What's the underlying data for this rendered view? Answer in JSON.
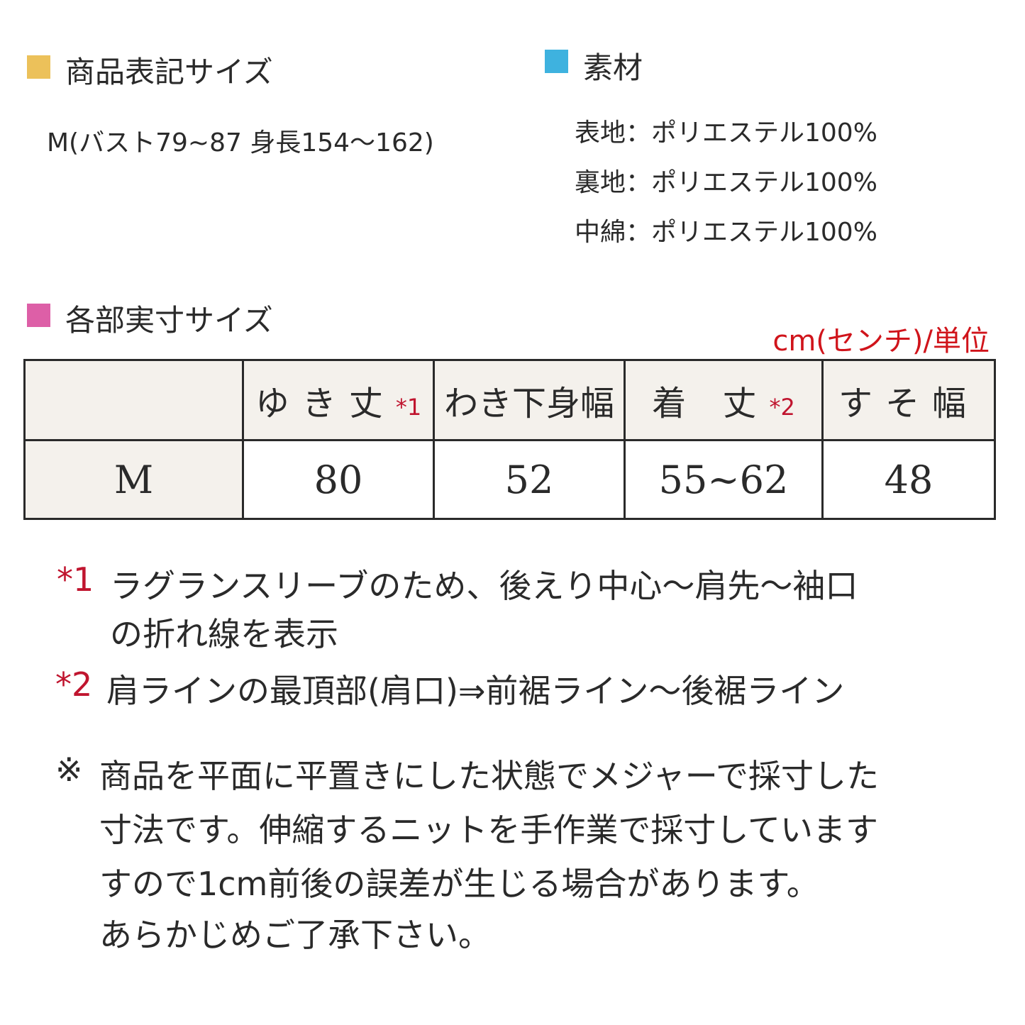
{
  "colors": {
    "size_marker": "#ecc15a",
    "material_marker": "#3eb2df",
    "measure_marker": "#dd5fa7",
    "note_red": "#c0152f",
    "header_bg": "#f4f1ec"
  },
  "size_label": {
    "title": "商品表記サイズ",
    "value": "M(バスト79~87 身長154～162)"
  },
  "material": {
    "title": "素材",
    "items": [
      "表地：ポリエステル100%",
      "裏地：ポリエステル100%",
      "中綿：ポリエステル100%"
    ]
  },
  "measure": {
    "title": "各部実寸サイズ",
    "unit": "cm(センチ)/単位"
  },
  "table": {
    "headers": [
      {
        "label": "",
        "mark": ""
      },
      {
        "label": "ゆき丈",
        "mark": "*1"
      },
      {
        "label": "わき下身幅",
        "mark": ""
      },
      {
        "label": "着 丈",
        "mark": "*2"
      },
      {
        "label": "すそ幅",
        "mark": ""
      }
    ],
    "rows": [
      [
        "M",
        "80",
        "52",
        "55~62",
        "48"
      ]
    ]
  },
  "notes": [
    {
      "mark": "*1",
      "lines": [
        "ラグランスリーブのため、後えり中心～肩先～袖口",
        "の折れ線を表示"
      ]
    },
    {
      "mark": "*2",
      "lines": [
        "肩ラインの最頂部(肩口)⇒前裾ライン～後裾ライン"
      ]
    }
  ],
  "disclaimer": {
    "mark": "※",
    "lines": [
      "商品を平面に平置きにした状態でメジャーで採寸した",
      "寸法です。伸縮するニットを手作業で採寸しています",
      "すので1cm前後の誤差が生じる場合があります。",
      "あらかじめご了承下さい。"
    ]
  }
}
